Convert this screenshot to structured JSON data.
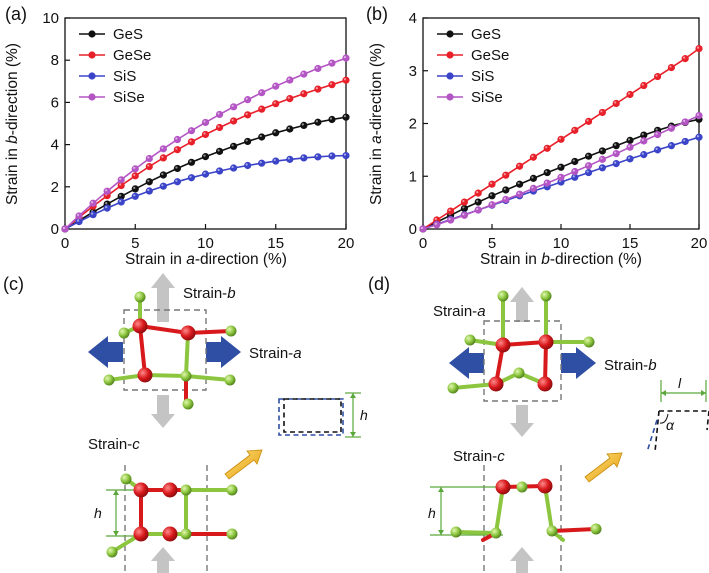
{
  "panels": {
    "a": "(a)",
    "b": "(b)",
    "c": "(c)",
    "d": "(d)"
  },
  "axes": {
    "a": {
      "xlabel_pre": "Strain in ",
      "xlabel_it": "a",
      "xlabel_post": "-direction (%)",
      "ylabel_pre": "Strain in ",
      "ylabel_it": "b",
      "ylabel_post": "-direction (%)"
    },
    "b": {
      "xlabel_pre": "Strain in ",
      "xlabel_it": "b",
      "xlabel_post": "-direction (%)",
      "ylabel_pre": "Strain in ",
      "ylabel_it": "a",
      "ylabel_post": "-direction (%)"
    }
  },
  "chart_data": [
    {
      "type": "line",
      "panel": "(a)",
      "xlim": [
        0,
        20
      ],
      "ylim": [
        0,
        10
      ],
      "xticks": [
        0,
        5,
        10,
        15,
        20
      ],
      "yticks": [
        0,
        2,
        4,
        6,
        8,
        10
      ],
      "legend_position": "top-left",
      "x": [
        0,
        1,
        2,
        3,
        4,
        5,
        6,
        7,
        8,
        9,
        10,
        11,
        12,
        13,
        14,
        15,
        16,
        17,
        18,
        19,
        20
      ],
      "series": [
        {
          "name": "GeS",
          "color": "#111111",
          "values": [
            0,
            0.4,
            0.8,
            1.18,
            1.55,
            1.9,
            2.24,
            2.56,
            2.87,
            3.16,
            3.43,
            3.68,
            3.92,
            4.15,
            4.36,
            4.56,
            4.74,
            4.91,
            5.06,
            5.19,
            5.3
          ]
        },
        {
          "name": "GeSe",
          "color": "#e8202a",
          "values": [
            0,
            0.55,
            1.08,
            1.58,
            2.06,
            2.52,
            2.96,
            3.37,
            3.76,
            4.13,
            4.48,
            4.81,
            5.12,
            5.41,
            5.68,
            5.94,
            6.18,
            6.41,
            6.63,
            6.84,
            7.05
          ]
        },
        {
          "name": "SiS",
          "color": "#3b44c8",
          "values": [
            0,
            0.35,
            0.68,
            0.99,
            1.28,
            1.55,
            1.8,
            2.03,
            2.24,
            2.43,
            2.6,
            2.75,
            2.89,
            3.01,
            3.12,
            3.22,
            3.3,
            3.37,
            3.42,
            3.46,
            3.48
          ]
        },
        {
          "name": "SiSe",
          "color": "#b455c4",
          "values": [
            0,
            0.62,
            1.22,
            1.79,
            2.33,
            2.85,
            3.34,
            3.8,
            4.24,
            4.66,
            5.05,
            5.43,
            5.79,
            6.13,
            6.46,
            6.77,
            7.06,
            7.34,
            7.61,
            7.86,
            8.1
          ]
        }
      ]
    },
    {
      "type": "line",
      "panel": "(b)",
      "xlim": [
        0,
        20
      ],
      "ylim": [
        0,
        4
      ],
      "xticks": [
        0,
        5,
        10,
        15,
        20
      ],
      "yticks": [
        0,
        1,
        2,
        3,
        4
      ],
      "legend_position": "top-left",
      "x": [
        0,
        1,
        2,
        3,
        4,
        5,
        6,
        7,
        8,
        9,
        10,
        11,
        12,
        13,
        14,
        15,
        16,
        17,
        18,
        19,
        20
      ],
      "series": [
        {
          "name": "GeS",
          "color": "#111111",
          "values": [
            0,
            0.13,
            0.26,
            0.39,
            0.51,
            0.63,
            0.74,
            0.85,
            0.96,
            1.07,
            1.17,
            1.28,
            1.38,
            1.48,
            1.58,
            1.68,
            1.78,
            1.87,
            1.95,
            2.02,
            2.08
          ]
        },
        {
          "name": "GeSe",
          "color": "#e8202a",
          "values": [
            0,
            0.17,
            0.34,
            0.51,
            0.68,
            0.85,
            1.02,
            1.19,
            1.36,
            1.53,
            1.7,
            1.87,
            2.04,
            2.21,
            2.38,
            2.55,
            2.72,
            2.89,
            3.06,
            3.23,
            3.42
          ]
        },
        {
          "name": "SiS",
          "color": "#3b44c8",
          "values": [
            0,
            0.09,
            0.18,
            0.27,
            0.36,
            0.45,
            0.54,
            0.63,
            0.72,
            0.8,
            0.89,
            0.98,
            1.07,
            1.16,
            1.24,
            1.33,
            1.41,
            1.5,
            1.58,
            1.66,
            1.74
          ]
        },
        {
          "name": "SiSe",
          "color": "#b455c4",
          "values": [
            0,
            0.08,
            0.17,
            0.26,
            0.36,
            0.46,
            0.56,
            0.66,
            0.77,
            0.87,
            0.98,
            1.09,
            1.2,
            1.32,
            1.43,
            1.55,
            1.67,
            1.79,
            1.91,
            2.03,
            2.15
          ]
        }
      ]
    }
  ],
  "diagrams": {
    "c": {
      "strain_b_pre": "Strain-",
      "strain_b_it": "b",
      "strain_a_pre": "Strain-",
      "strain_a_it": "a",
      "strain_c_pre": "Strain-",
      "strain_c_it": "c",
      "h_label": "h",
      "inset_h_label": "h"
    },
    "d": {
      "strain_a_pre": "Strain-",
      "strain_a_it": "a",
      "strain_b_pre": "Strain-",
      "strain_b_it": "b",
      "strain_c_pre": "Strain-",
      "strain_c_it": "c",
      "h_label": "h",
      "inset_l_label": "l",
      "inset_alpha_label": "α"
    }
  },
  "colors": {
    "atom_red": "#d8191c",
    "atom_green": "#8cc63f",
    "arrow_gray": "#c4c4c4",
    "arrow_blue": "#2f4fa5",
    "arrow_gold": "#f2b51a",
    "guide_green": "#5aa83a"
  }
}
